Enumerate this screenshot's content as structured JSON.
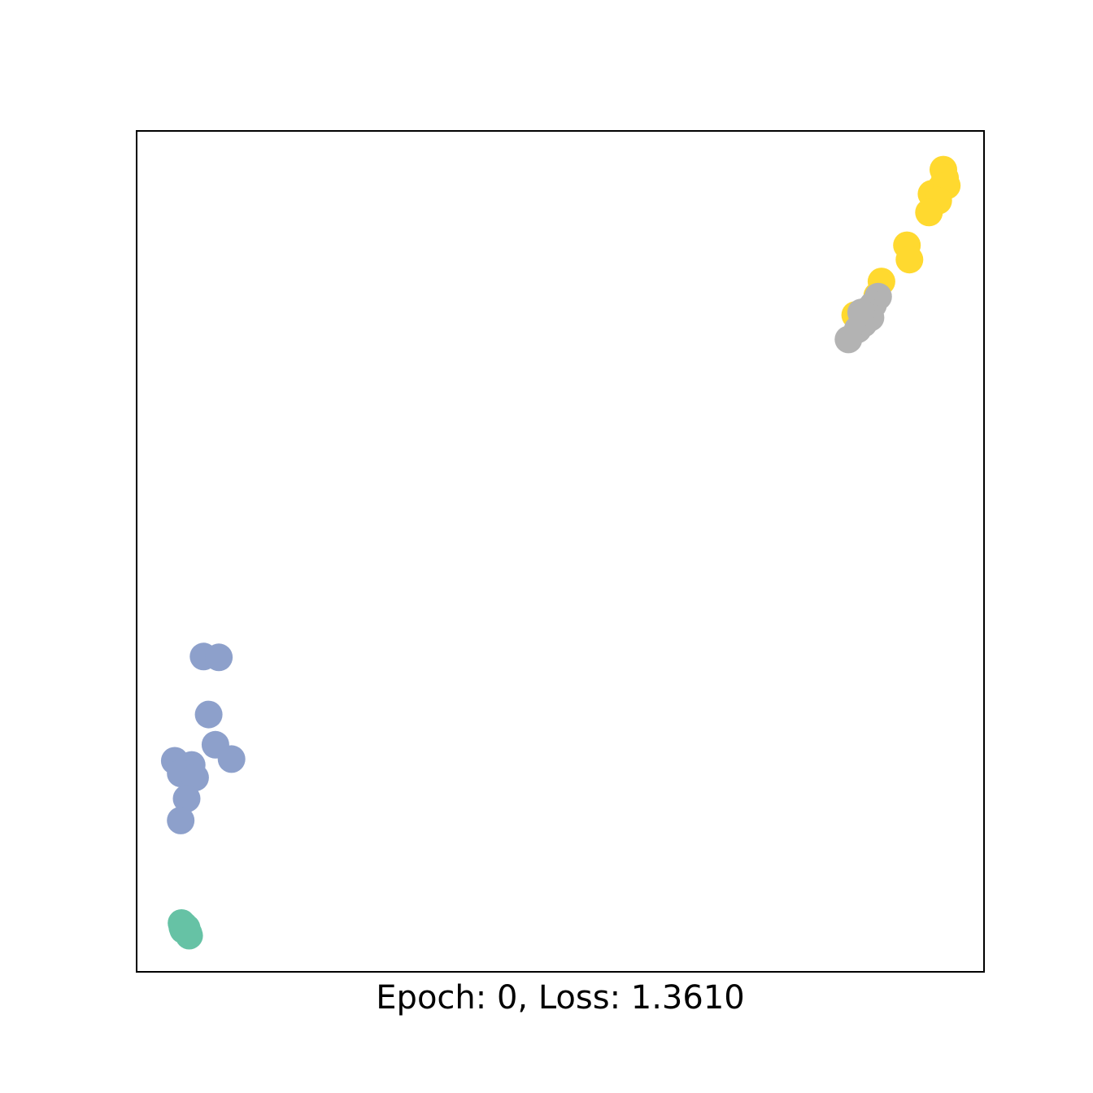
{
  "chart_data": {
    "type": "scatter",
    "title": "",
    "xlabel": "Epoch: 0, Loss: 1.3610",
    "ylabel": "",
    "xticks": [],
    "yticks": [],
    "grid": false,
    "legend": "none",
    "xlim": [
      0,
      100
    ],
    "ylim": [
      0,
      100
    ],
    "series": [
      {
        "color": "#66c2a5",
        "points": [
          {
            "x": 5.3,
            "y": 5.8
          },
          {
            "x": 5.6,
            "y": 5.5
          },
          {
            "x": 5.9,
            "y": 5.2
          },
          {
            "x": 6.1,
            "y": 4.6
          },
          {
            "x": 6.2,
            "y": 4.3
          },
          {
            "x": 5.5,
            "y": 5.0
          },
          {
            "x": 5.8,
            "y": 4.9
          },
          {
            "x": 5.4,
            "y": 5.3
          }
        ]
      },
      {
        "color": "#8da0cb",
        "points": [
          {
            "x": 7.9,
            "y": 37.5
          },
          {
            "x": 9.7,
            "y": 37.4
          },
          {
            "x": 8.5,
            "y": 30.6
          },
          {
            "x": 9.3,
            "y": 27.0
          },
          {
            "x": 11.2,
            "y": 25.3
          },
          {
            "x": 4.5,
            "y": 25.1
          },
          {
            "x": 6.5,
            "y": 24.6
          },
          {
            "x": 5.2,
            "y": 23.6
          },
          {
            "x": 6.9,
            "y": 23.1
          },
          {
            "x": 5.9,
            "y": 20.6
          },
          {
            "x": 5.2,
            "y": 18.0
          }
        ]
      },
      {
        "color": "#ffd92f",
        "points": [
          {
            "x": 95.2,
            "y": 95.4
          },
          {
            "x": 95.4,
            "y": 94.4
          },
          {
            "x": 94.9,
            "y": 93.2
          },
          {
            "x": 93.8,
            "y": 92.5
          },
          {
            "x": 95.6,
            "y": 93.5
          },
          {
            "x": 94.6,
            "y": 91.7
          },
          {
            "x": 93.5,
            "y": 90.3
          },
          {
            "x": 90.9,
            "y": 86.4
          },
          {
            "x": 91.2,
            "y": 84.7
          },
          {
            "x": 87.9,
            "y": 82.1
          },
          {
            "x": 87.4,
            "y": 80.4
          },
          {
            "x": 84.8,
            "y": 78.1
          }
        ]
      },
      {
        "color": "#b3b3b3",
        "points": [
          {
            "x": 87.5,
            "y": 80.3
          },
          {
            "x": 86.9,
            "y": 79.3
          },
          {
            "x": 86.1,
            "y": 78.6
          },
          {
            "x": 85.8,
            "y": 77.1
          },
          {
            "x": 85.1,
            "y": 76.4
          },
          {
            "x": 84.0,
            "y": 75.2
          },
          {
            "x": 86.6,
            "y": 77.8
          },
          {
            "x": 85.5,
            "y": 78.4
          }
        ]
      }
    ]
  }
}
